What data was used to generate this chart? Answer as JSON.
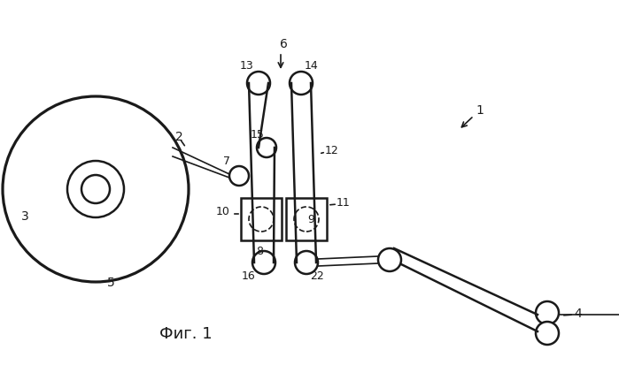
{
  "background_color": "#ffffff",
  "fig_label": "Фиг. 1",
  "lw": 1.8,
  "tlw": 1.2,
  "black": "#1a1a1a"
}
